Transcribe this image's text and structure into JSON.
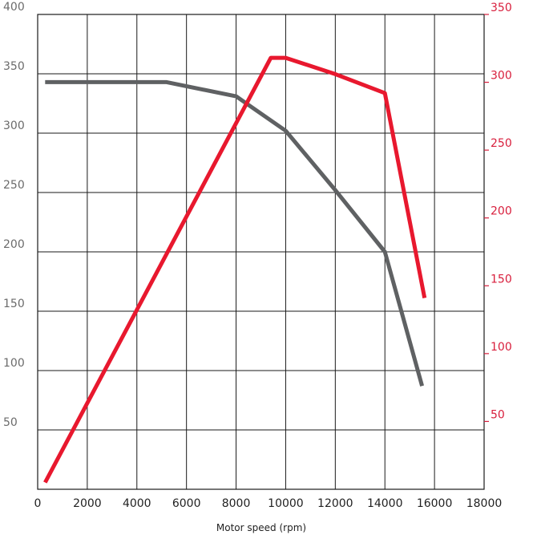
{
  "chart_data": {
    "type": "line",
    "xlabel": "Motor speed (rpm)",
    "xlim": [
      0,
      18000
    ],
    "xticks": [
      0,
      2000,
      4000,
      6000,
      8000,
      10000,
      12000,
      14000,
      16000,
      18000
    ],
    "y_left": {
      "ylim": [
        0,
        400
      ],
      "ticks": [
        50,
        100,
        150,
        200,
        250,
        300,
        350,
        400
      ],
      "color": "#6b6b6b"
    },
    "y_right": {
      "ylim": [
        0,
        350
      ],
      "ticks": [
        50,
        100,
        150,
        200,
        250,
        300,
        350
      ],
      "color": "#d81e3c"
    },
    "grid": true,
    "series": [
      {
        "axis": "left",
        "color": "#5f6163",
        "x": [
          300,
          5200,
          8000,
          10000,
          12000,
          14000,
          15500
        ],
        "y": [
          343,
          343,
          331,
          302,
          252,
          200,
          87
        ]
      },
      {
        "axis": "right",
        "color": "#e8182e",
        "x": [
          300,
          9400,
          10000,
          12000,
          14000,
          15600
        ],
        "y": [
          5,
          318,
          318,
          306,
          292,
          141
        ]
      }
    ]
  }
}
